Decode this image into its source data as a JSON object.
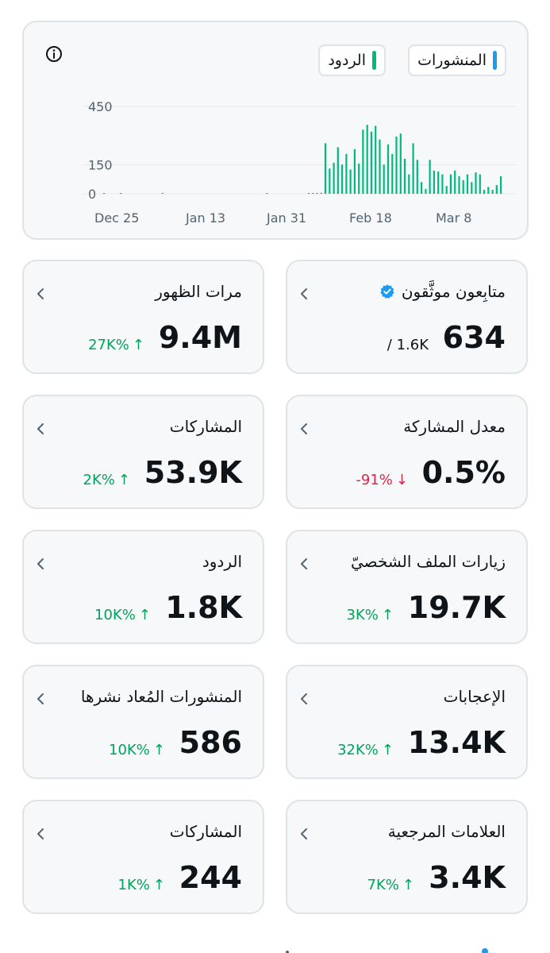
{
  "chart": {
    "legend": {
      "posts_label": "المنشورات",
      "replies_label": "الردود",
      "posts_color": "#1d9bf0",
      "replies_color": "#00ba7c"
    },
    "icon": "info-icon"
  },
  "chart_data": {
    "type": "bar",
    "y_ticks": [
      "450",
      "150",
      "0"
    ],
    "x_ticks": [
      "Dec 25",
      "Jan 13",
      "Jan 31",
      "Feb 18",
      "Mar 8"
    ],
    "ylim": [
      0,
      450
    ],
    "grid": true,
    "legend_position": "top-right",
    "series": [
      {
        "name": "الردود",
        "color": "#00ba7c",
        "values": [
          1,
          0,
          0,
          0,
          1,
          0,
          0,
          0,
          0,
          0,
          0,
          0,
          0,
          0,
          1,
          0,
          0,
          0,
          0,
          0,
          0,
          0,
          0,
          0,
          0,
          0,
          0,
          0,
          0,
          0,
          0,
          0,
          0,
          0,
          0,
          0,
          0,
          0,
          0,
          1,
          0,
          0,
          0,
          0,
          0,
          0,
          0,
          0,
          0,
          2,
          3,
          4,
          5,
          260,
          130,
          160,
          240,
          150,
          205,
          125,
          230,
          155,
          330,
          355,
          320,
          350,
          280,
          150,
          255,
          205,
          295,
          310,
          180,
          100,
          260,
          175,
          60,
          25,
          175,
          120,
          115,
          100,
          40,
          100,
          120,
          90,
          70,
          100,
          60,
          110,
          100,
          20,
          35,
          20,
          45,
          90
        ]
      },
      {
        "name": "المنشورات",
        "color": "#1d9bf0",
        "values": [
          1,
          0,
          0,
          0,
          1,
          0,
          0,
          0,
          0,
          0,
          0,
          0,
          0,
          0,
          0,
          0,
          0,
          0,
          0,
          0,
          0,
          0,
          0,
          0,
          0,
          0,
          0,
          0,
          0,
          0,
          0,
          0,
          0,
          0,
          0,
          0,
          0,
          0,
          0,
          0,
          0,
          0,
          0,
          0,
          0,
          0,
          0,
          0,
          0,
          2,
          2,
          2,
          2,
          3,
          2,
          2,
          2,
          2,
          2,
          2,
          2,
          2,
          2,
          2,
          2,
          2,
          2,
          2,
          2,
          2,
          2,
          2,
          2,
          2,
          2,
          2,
          2,
          2,
          2,
          2,
          2,
          2,
          2,
          2,
          2,
          2,
          2,
          2,
          2,
          2,
          2,
          2,
          2,
          2,
          2,
          2
        ]
      }
    ]
  },
  "metrics": [
    {
      "title": "متابِعون موثَّقون",
      "value": "634",
      "total": "/ 1.6K",
      "verified_icon": "verified-badge-icon"
    },
    {
      "title": "مرات الظهور",
      "value": "9.4M",
      "change": "27K%",
      "direction": "up"
    },
    {
      "title": "معدل المشاركة",
      "value": "0.5%",
      "change": "-91%",
      "direction": "down"
    },
    {
      "title": "المشاركات",
      "value": "53.9K",
      "change": "2K%",
      "direction": "up"
    },
    {
      "title": "زيارات الملف الشخصيّ",
      "value": "19.7K",
      "change": "3K%",
      "direction": "up"
    },
    {
      "title": "الردود",
      "value": "1.8K",
      "change": "10K%",
      "direction": "up"
    },
    {
      "title": "الإعجابات",
      "value": "13.4K",
      "change": "32K%",
      "direction": "up"
    },
    {
      "title": "المنشورات المُعاد نشرها",
      "value": "586",
      "change": "10K%",
      "direction": "up"
    },
    {
      "title": "العلامات المرجعية",
      "value": "3.4K",
      "change": "7K%",
      "direction": "up"
    },
    {
      "title": "المشاركات",
      "value": "244",
      "change": "1K%",
      "direction": "up"
    }
  ],
  "arrows": {
    "up": "↑",
    "down": "↓"
  }
}
